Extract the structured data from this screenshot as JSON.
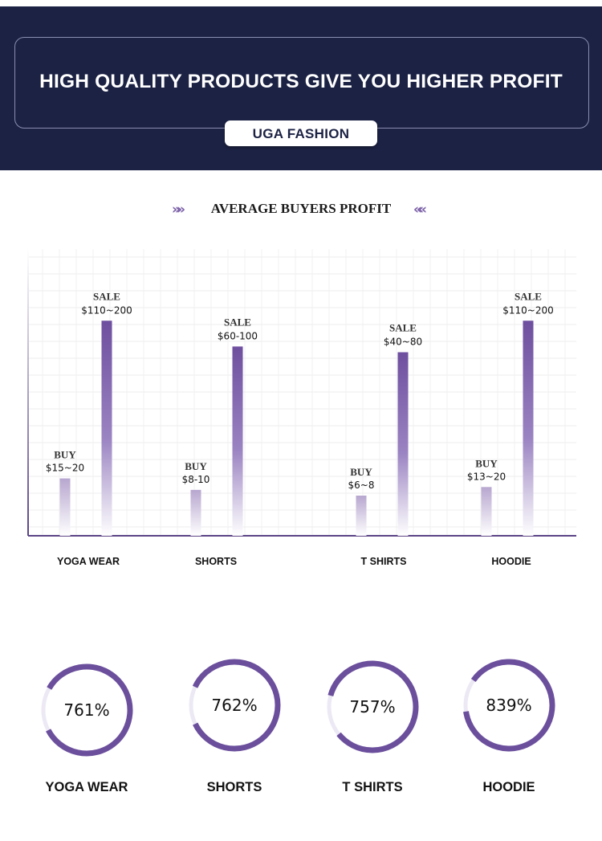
{
  "header": {
    "title": "HIGH QUALITY PRODUCTS GIVE YOU HIGHER PROFIT",
    "brand": "UGA FASHION"
  },
  "section": {
    "title": "AVERAGE BUYERS PROFIT",
    "chevron_left": "»»",
    "chevron_right": "««"
  },
  "colors": {
    "navy": "#1c2244",
    "sale_bar": "#6e4f9f",
    "buy_bar": "#b7a6cf",
    "ring": "#6b4f9c",
    "ring_track": "#ece9f5"
  },
  "chart_data": [
    {
      "type": "bar",
      "title": "AVERAGE BUYERS PROFIT",
      "categories": [
        "YOGA WEAR",
        "SHORTS",
        "T SHIRTS",
        "HOODIE"
      ],
      "series": [
        {
          "name": "BUY",
          "values": [
            20,
            16,
            14,
            17
          ],
          "labels": [
            "$15~20",
            "$8-10",
            "$6~8",
            "$13~20"
          ]
        },
        {
          "name": "SALE",
          "values": [
            75,
            66,
            64,
            75
          ],
          "labels": [
            "$110~200",
            "$60-100",
            "$40~80",
            "$110~200"
          ]
        }
      ],
      "grid": true,
      "ylim": [
        0,
        100
      ]
    },
    {
      "type": "pie",
      "categories": [
        "YOGA WEAR",
        "SHORTS",
        "T SHIRTS",
        "HOODIE"
      ],
      "labels": [
        "761%",
        "762%",
        "757%",
        "839%"
      ],
      "values": [
        761,
        762,
        757,
        839
      ],
      "ring_fill_fraction": [
        0.84,
        0.86,
        0.85,
        0.88
      ]
    }
  ]
}
